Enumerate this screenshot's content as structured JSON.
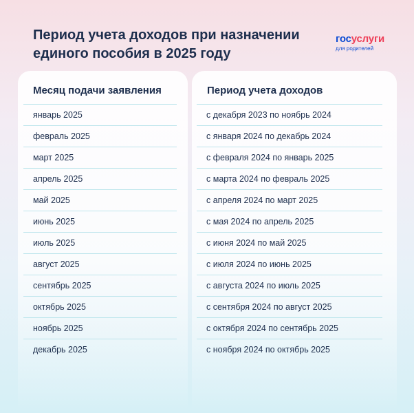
{
  "title": "Период учета доходов при назначении единого пособия в 2025 году",
  "logo": {
    "gos": "гос",
    "uslugi": "услуги",
    "sub": "для родителей"
  },
  "table": {
    "headers": [
      "Месяц подачи заявления",
      "Период учета доходов"
    ],
    "rows": [
      [
        "январь 2025",
        "с декабря 2023 по ноябрь 2024"
      ],
      [
        "февраль 2025",
        "с января 2024 по декабрь 2024"
      ],
      [
        "март 2025",
        "с февраля 2024 по январь 2025"
      ],
      [
        "апрель 2025",
        "с марта 2024 по февраль 2025"
      ],
      [
        "май 2025",
        "с апреля 2024 по март 2025"
      ],
      [
        "июнь 2025",
        "с мая 2024 по апрель 2025"
      ],
      [
        "июль 2025",
        "с июня 2024 по май 2025"
      ],
      [
        "август 2025",
        "с июля 2024 по июнь 2025"
      ],
      [
        "сентябрь 2025",
        "с августа 2024 по июль 2025"
      ],
      [
        "октябрь 2025",
        "с сентября 2024 по август 2025"
      ],
      [
        "ноябрь 2025",
        "с октября 2024 по сентябрь 2025"
      ],
      [
        "декабрь 2025",
        "с ноября 2024 по октябрь 2025"
      ]
    ]
  },
  "colors": {
    "text": "#1d2e4d",
    "brand_blue": "#0d4cd3",
    "brand_red": "#ee3f58",
    "divider": "#bde5ec"
  }
}
